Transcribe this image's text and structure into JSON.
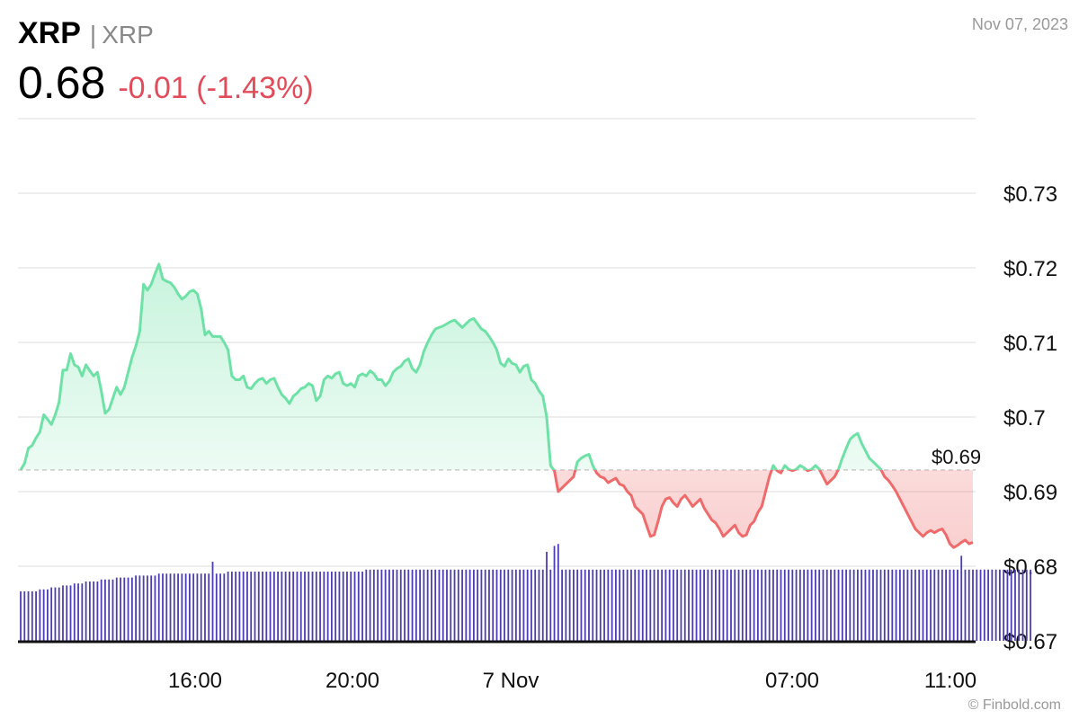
{
  "header": {
    "symbol": "XRP",
    "separator": "|",
    "name": "XRP",
    "price": "0.68",
    "change": "-0.01 (-1.43%)",
    "date": "Nov 07, 2023"
  },
  "credit": "© Finbold.com",
  "colors": {
    "up": "#6ee2a6",
    "down": "#ef6a6a",
    "change_text": "#e14b5a",
    "volume": "#4b3eb3",
    "grid": "#e3e3e3"
  },
  "chart_data": {
    "type": "line",
    "title": "",
    "xlabel": "",
    "ylabel": "",
    "y_ticks": [
      0.67,
      0.68,
      0.69,
      0.7,
      0.71,
      0.72,
      0.73
    ],
    "y_tick_labels": [
      "$0.67",
      "$0.68",
      "$0.69",
      "$0.7",
      "$0.71",
      "$0.72",
      "$0.73"
    ],
    "ylim": [
      0.67,
      0.7395
    ],
    "x_tick_labels": [
      "16:00",
      "20:00",
      "7 Nov",
      "07:00",
      "11:00"
    ],
    "reference_price": 0.6929,
    "reference_label": "$0.69",
    "series": [
      {
        "values": [
          0.6929,
          0.6938,
          0.6958,
          0.6962,
          0.6972,
          0.698,
          0.7003,
          0.6997,
          0.699,
          0.7003,
          0.702,
          0.7063,
          0.7063,
          0.7085,
          0.707,
          0.7067,
          0.7055,
          0.707,
          0.7062,
          0.7055,
          0.706,
          0.7035,
          0.7005,
          0.701,
          0.7025,
          0.704,
          0.703,
          0.704,
          0.706,
          0.708,
          0.7095,
          0.7115,
          0.7178,
          0.717,
          0.7178,
          0.7192,
          0.7205,
          0.7185,
          0.7182,
          0.718,
          0.7174,
          0.7165,
          0.7158,
          0.7162,
          0.7168,
          0.717,
          0.7165,
          0.7145,
          0.711,
          0.7115,
          0.7108,
          0.7108,
          0.7108,
          0.71,
          0.709,
          0.7055,
          0.705,
          0.705,
          0.7055,
          0.704,
          0.7038,
          0.7045,
          0.705,
          0.7052,
          0.7045,
          0.705,
          0.7052,
          0.704,
          0.703,
          0.7025,
          0.7018,
          0.7028,
          0.7032,
          0.7038,
          0.704,
          0.7045,
          0.7042,
          0.7022,
          0.7028,
          0.705,
          0.7055,
          0.7052,
          0.7058,
          0.706,
          0.7045,
          0.7042,
          0.7045,
          0.704,
          0.7055,
          0.7058,
          0.7055,
          0.7062,
          0.7058,
          0.705,
          0.705,
          0.7042,
          0.7048,
          0.706,
          0.7065,
          0.7068,
          0.7075,
          0.7078,
          0.7065,
          0.706,
          0.707,
          0.7088,
          0.71,
          0.711,
          0.7118,
          0.712,
          0.7122,
          0.7125,
          0.7128,
          0.713,
          0.7125,
          0.712,
          0.7125,
          0.713,
          0.7132,
          0.7125,
          0.7118,
          0.7115,
          0.7108,
          0.71,
          0.709,
          0.7072,
          0.7068,
          0.7078,
          0.7072,
          0.707,
          0.706,
          0.7068,
          0.707,
          0.705,
          0.7045,
          0.7035,
          0.7028,
          0.7,
          0.6935,
          0.6928,
          0.69,
          0.6905,
          0.691,
          0.6915,
          0.692,
          0.694,
          0.6945,
          0.6948,
          0.695,
          0.6935,
          0.6925,
          0.692,
          0.6918,
          0.6912,
          0.6915,
          0.6918,
          0.691,
          0.6908,
          0.69,
          0.6895,
          0.688,
          0.6875,
          0.687,
          0.6855,
          0.684,
          0.6842,
          0.686,
          0.688,
          0.689,
          0.6892,
          0.6885,
          0.688,
          0.689,
          0.6895,
          0.6888,
          0.688,
          0.6885,
          0.689,
          0.6878,
          0.687,
          0.6862,
          0.6858,
          0.685,
          0.684,
          0.6845,
          0.685,
          0.6855,
          0.6845,
          0.684,
          0.6842,
          0.6855,
          0.686,
          0.6872,
          0.688,
          0.69,
          0.692,
          0.6935,
          0.6928,
          0.6925,
          0.6935,
          0.693,
          0.6928,
          0.693,
          0.6935,
          0.6932,
          0.6928,
          0.693,
          0.6935,
          0.693,
          0.692,
          0.691,
          0.6915,
          0.692,
          0.693,
          0.6945,
          0.6958,
          0.697,
          0.6975,
          0.6978,
          0.6965,
          0.6955,
          0.6945,
          0.694,
          0.6935,
          0.693,
          0.692,
          0.6915,
          0.6908,
          0.69,
          0.689,
          0.688,
          0.687,
          0.686,
          0.685,
          0.6845,
          0.684,
          0.6845,
          0.6848,
          0.6845,
          0.6848,
          0.685,
          0.6842,
          0.683,
          0.6825,
          0.6828,
          0.6832,
          0.6835,
          0.683,
          0.6832
        ]
      }
    ],
    "volume": {
      "values": [
        0.25,
        0.25,
        0.25,
        0.25,
        0.25,
        0.26,
        0.26,
        0.26,
        0.27,
        0.27,
        0.27,
        0.28,
        0.28,
        0.28,
        0.29,
        0.29,
        0.29,
        0.3,
        0.3,
        0.3,
        0.3,
        0.31,
        0.31,
        0.31,
        0.31,
        0.32,
        0.32,
        0.32,
        0.32,
        0.32,
        0.33,
        0.33,
        0.33,
        0.33,
        0.33,
        0.33,
        0.34,
        0.34,
        0.34,
        0.34,
        0.34,
        0.34,
        0.34,
        0.34,
        0.34,
        0.34,
        0.34,
        0.34,
        0.34,
        0.34,
        0.34,
        0.34,
        0.34,
        0.34,
        0.35,
        0.35,
        0.35,
        0.35,
        0.35,
        0.35,
        0.35,
        0.35,
        0.35,
        0.35,
        0.35,
        0.35,
        0.35,
        0.35,
        0.35,
        0.35,
        0.35,
        0.35,
        0.35,
        0.35,
        0.35,
        0.35,
        0.35,
        0.35,
        0.35,
        0.35,
        0.35,
        0.35,
        0.35,
        0.35,
        0.35,
        0.35,
        0.35,
        0.35,
        0.35,
        0.35,
        0.36,
        0.36,
        0.36,
        0.36,
        0.36,
        0.36,
        0.36,
        0.36,
        0.36,
        0.36,
        0.36,
        0.36,
        0.36,
        0.36,
        0.36,
        0.36,
        0.36,
        0.36,
        0.36,
        0.36,
        0.36,
        0.36,
        0.36,
        0.36,
        0.36,
        0.36,
        0.36,
        0.36,
        0.36,
        0.36,
        0.36,
        0.36,
        0.36,
        0.36,
        0.36,
        0.36,
        0.36,
        0.36,
        0.36,
        0.36,
        0.36,
        0.36,
        0.36,
        0.36,
        0.36,
        0.36,
        0.36,
        0.36,
        0.36,
        0.36,
        0.36,
        0.36,
        0.36,
        0.36,
        0.36,
        0.36,
        0.36,
        0.36,
        0.36,
        0.36,
        0.36,
        0.36,
        0.36,
        0.36,
        0.36,
        0.36,
        0.36,
        0.36,
        0.36,
        0.36,
        0.36,
        0.36,
        0.36,
        0.36,
        0.36,
        0.36,
        0.36,
        0.36,
        0.36,
        0.36,
        0.36,
        0.36,
        0.36,
        0.36,
        0.36,
        0.36,
        0.36,
        0.36,
        0.36,
        0.36,
        0.36,
        0.36,
        0.36,
        0.36,
        0.36,
        0.36,
        0.36,
        0.36,
        0.36,
        0.36,
        0.36,
        0.36,
        0.36,
        0.36,
        0.36,
        0.36,
        0.36,
        0.36,
        0.36,
        0.36,
        0.36,
        0.36,
        0.36,
        0.36,
        0.36,
        0.36,
        0.36,
        0.36,
        0.36,
        0.36,
        0.36,
        0.36,
        0.36,
        0.36,
        0.36,
        0.36,
        0.36,
        0.36,
        0.36,
        0.36,
        0.36,
        0.36,
        0.36,
        0.36,
        0.36,
        0.36,
        0.36,
        0.36,
        0.36,
        0.36,
        0.36,
        0.36,
        0.36,
        0.36,
        0.36,
        0.36,
        0.36,
        0.36,
        0.36,
        0.36,
        0.36,
        0.36,
        0.36,
        0.36,
        0.36,
        0.36,
        0.36,
        0.36,
        0.36,
        0.36,
        0.36,
        0.36,
        0.36,
        0.36,
        0.36,
        0.36,
        0.36,
        0.36,
        0.36,
        0.36,
        0.36,
        0.36,
        0.36,
        0.36
      ],
      "spikes": [
        [
          50,
          0.4
        ],
        [
          137,
          0.45
        ],
        [
          139,
          0.48
        ],
        [
          140,
          0.49
        ],
        [
          245,
          0.43
        ]
      ]
    },
    "grid": true
  }
}
